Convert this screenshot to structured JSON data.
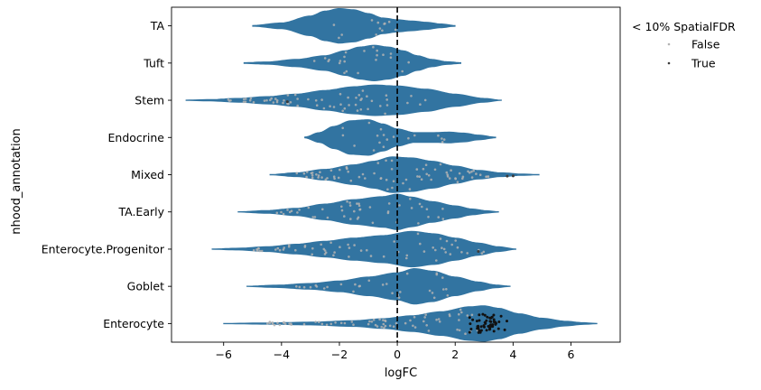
{
  "chart_data": {
    "type": "violin",
    "orientation": "horizontal",
    "xlabel": "logFC",
    "ylabel": "nhood_annotation",
    "xlim": [
      -7.8,
      7.7
    ],
    "x_ticks": [
      -6,
      -4,
      -2,
      0,
      2,
      4,
      6
    ],
    "x_tick_labels": [
      "−6",
      "−4",
      "−2",
      "0",
      "2",
      "4",
      "6"
    ],
    "reference_line": {
      "x": 0,
      "style": "dashed",
      "color": "#000000"
    },
    "grid": false,
    "violin_color": "#3274a1",
    "legend": {
      "title": "< 10% SpatialFDR",
      "placement": "outside-right",
      "entries": [
        {
          "label": "False",
          "color": "#b3b3b3"
        },
        {
          "label": "True",
          "color": "#3a3a3a"
        }
      ]
    },
    "categories": [
      {
        "name": "TA",
        "min": -5.0,
        "max": 2.0,
        "profile": [
          [
            -5.0,
            0.02
          ],
          [
            -4.0,
            0.12
          ],
          [
            -3.0,
            0.4
          ],
          [
            -2.5,
            0.6
          ],
          [
            -2.0,
            0.7
          ],
          [
            -1.5,
            0.65
          ],
          [
            -1.0,
            0.5
          ],
          [
            -0.5,
            0.32
          ],
          [
            0,
            0.25
          ],
          [
            0.5,
            0.2
          ],
          [
            1.0,
            0.15
          ],
          [
            1.5,
            0.08
          ],
          [
            2.0,
            0.02
          ]
        ],
        "points": {
          "false_count": 12,
          "false_range": [
            -2.5,
            0.3
          ],
          "true": []
        }
      },
      {
        "name": "Tuft",
        "min": -5.3,
        "max": 2.2,
        "profile": [
          [
            -5.3,
            0.02
          ],
          [
            -4.5,
            0.05
          ],
          [
            -3.5,
            0.15
          ],
          [
            -2.5,
            0.3
          ],
          [
            -1.8,
            0.5
          ],
          [
            -1.3,
            0.65
          ],
          [
            -0.8,
            0.72
          ],
          [
            -0.3,
            0.65
          ],
          [
            0.2,
            0.5
          ],
          [
            0.7,
            0.3
          ],
          [
            1.2,
            0.15
          ],
          [
            1.7,
            0.06
          ],
          [
            2.2,
            0.02
          ]
        ],
        "points": {
          "false_count": 22,
          "false_range": [
            -3.5,
            0.5
          ],
          "true": []
        }
      },
      {
        "name": "Stem",
        "min": -7.3,
        "max": 3.6,
        "profile": [
          [
            -7.3,
            0.01
          ],
          [
            -6.5,
            0.03
          ],
          [
            -5.5,
            0.08
          ],
          [
            -4.5,
            0.15
          ],
          [
            -3.5,
            0.25
          ],
          [
            -2.5,
            0.4
          ],
          [
            -1.5,
            0.55
          ],
          [
            -0.8,
            0.62
          ],
          [
            0,
            0.58
          ],
          [
            1.0,
            0.45
          ],
          [
            2.0,
            0.25
          ],
          [
            3.0,
            0.08
          ],
          [
            3.6,
            0.01
          ]
        ],
        "points": {
          "false_count": 60,
          "false_range": [
            -5.9,
            1.0
          ],
          "true": [
            -3.8
          ]
        }
      },
      {
        "name": "Endocrine",
        "min": -3.2,
        "max": 3.4,
        "profile": [
          [
            -3.2,
            0.02
          ],
          [
            -2.7,
            0.2
          ],
          [
            -2.2,
            0.45
          ],
          [
            -1.6,
            0.68
          ],
          [
            -1.0,
            0.72
          ],
          [
            -0.5,
            0.55
          ],
          [
            0,
            0.35
          ],
          [
            0.6,
            0.2
          ],
          [
            1.2,
            0.2
          ],
          [
            1.8,
            0.22
          ],
          [
            2.3,
            0.18
          ],
          [
            2.8,
            0.1
          ],
          [
            3.4,
            0.02
          ]
        ],
        "points": {
          "false_count": 18,
          "false_range": [
            -2.0,
            1.8
          ],
          "true": []
        }
      },
      {
        "name": "Mixed",
        "min": -4.4,
        "max": 4.9,
        "profile": [
          [
            -4.4,
            0.01
          ],
          [
            -3.5,
            0.08
          ],
          [
            -2.5,
            0.22
          ],
          [
            -1.5,
            0.4
          ],
          [
            -0.8,
            0.55
          ],
          [
            -0.2,
            0.72
          ],
          [
            0.5,
            0.68
          ],
          [
            1.2,
            0.55
          ],
          [
            2.0,
            0.35
          ],
          [
            2.8,
            0.18
          ],
          [
            3.6,
            0.08
          ],
          [
            4.3,
            0.03
          ],
          [
            4.9,
            0.01
          ]
        ],
        "points": {
          "false_count": 75,
          "false_range": [
            -3.5,
            3.2
          ],
          "true": [
            3.8,
            4.0
          ]
        }
      },
      {
        "name": "TA.Early",
        "min": -5.5,
        "max": 3.5,
        "profile": [
          [
            -5.5,
            0.01
          ],
          [
            -4.5,
            0.06
          ],
          [
            -3.5,
            0.15
          ],
          [
            -2.5,
            0.32
          ],
          [
            -1.5,
            0.5
          ],
          [
            -0.5,
            0.62
          ],
          [
            0,
            0.72
          ],
          [
            0.5,
            0.6
          ],
          [
            1.2,
            0.42
          ],
          [
            2.0,
            0.25
          ],
          [
            2.6,
            0.12
          ],
          [
            3.1,
            0.05
          ],
          [
            3.5,
            0.01
          ]
        ],
        "points": {
          "false_count": 45,
          "false_range": [
            -4.2,
            1.8
          ],
          "true": []
        }
      },
      {
        "name": "Enterocyte.Progenitor",
        "min": -6.4,
        "max": 4.1,
        "profile": [
          [
            -6.4,
            0.01
          ],
          [
            -5.5,
            0.04
          ],
          [
            -4.5,
            0.1
          ],
          [
            -3.5,
            0.2
          ],
          [
            -2.5,
            0.32
          ],
          [
            -1.5,
            0.45
          ],
          [
            -0.5,
            0.55
          ],
          [
            0.5,
            0.72
          ],
          [
            1.3,
            0.62
          ],
          [
            2.0,
            0.45
          ],
          [
            2.8,
            0.25
          ],
          [
            3.5,
            0.1
          ],
          [
            4.1,
            0.01
          ]
        ],
        "points": {
          "false_count": 60,
          "false_range": [
            -5.0,
            3.0
          ],
          "true": [
            2.8
          ]
        }
      },
      {
        "name": "Goblet",
        "min": -5.2,
        "max": 3.9,
        "profile": [
          [
            -5.2,
            0.01
          ],
          [
            -4.2,
            0.05
          ],
          [
            -3.0,
            0.12
          ],
          [
            -2.0,
            0.22
          ],
          [
            -1.0,
            0.38
          ],
          [
            0,
            0.55
          ],
          [
            0.6,
            0.72
          ],
          [
            1.2,
            0.62
          ],
          [
            2.0,
            0.38
          ],
          [
            2.8,
            0.18
          ],
          [
            3.4,
            0.06
          ],
          [
            3.9,
            0.01
          ]
        ],
        "points": {
          "false_count": 30,
          "false_range": [
            -4.0,
            1.8
          ],
          "true": []
        }
      },
      {
        "name": "Enterocyte",
        "min": -6.0,
        "max": 6.9,
        "profile": [
          [
            -6.0,
            0.01
          ],
          [
            -4.5,
            0.03
          ],
          [
            -3.0,
            0.06
          ],
          [
            -1.5,
            0.12
          ],
          [
            -0.5,
            0.2
          ],
          [
            0.5,
            0.32
          ],
          [
            1.5,
            0.48
          ],
          [
            2.5,
            0.68
          ],
          [
            3.0,
            0.72
          ],
          [
            3.5,
            0.62
          ],
          [
            4.2,
            0.4
          ],
          [
            5.0,
            0.22
          ],
          [
            5.8,
            0.1
          ],
          [
            6.4,
            0.04
          ],
          [
            6.9,
            0.01
          ]
        ],
        "points": {
          "false_count": 70,
          "false_range": [
            -4.5,
            3.0
          ],
          "true_count": 55,
          "true_range": [
            2.5,
            5.6
          ]
        }
      }
    ]
  }
}
